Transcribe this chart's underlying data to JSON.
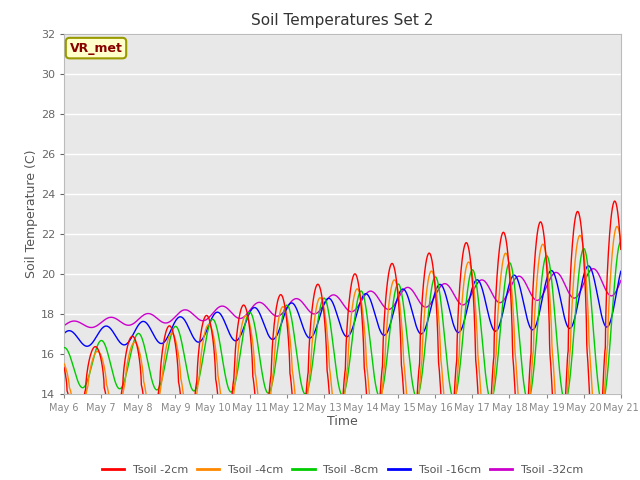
{
  "title": "Soil Temperatures Set 2",
  "xlabel": "Time",
  "ylabel": "Soil Temperature (C)",
  "ylim": [
    14,
    32
  ],
  "background_color": "#ffffff",
  "plot_bg_color": "#e8e8e8",
  "grid_color": "#ffffff",
  "annotation_text": "VR_met",
  "annotation_bg": "#ffffcc",
  "annotation_border": "#999900",
  "annotation_text_color": "#880000",
  "series_colors": [
    "#ff0000",
    "#ff8800",
    "#00cc00",
    "#0000ff",
    "#cc00cc"
  ],
  "series_labels": [
    "Tsoil -2cm",
    "Tsoil -4cm",
    "Tsoil -8cm",
    "Tsoil -16cm",
    "Tsoil -32cm"
  ],
  "tick_labels": [
    "May 6",
    "May 7",
    "May 8",
    "May 9",
    "May 10",
    "May 11",
    "May 12",
    "May 13",
    "May 14",
    "May 15",
    "May 16",
    "May 17",
    "May 18",
    "May 19",
    "May 20",
    "May 21"
  ],
  "yticks": [
    14,
    16,
    18,
    20,
    22,
    24,
    26,
    28,
    30,
    32
  ]
}
